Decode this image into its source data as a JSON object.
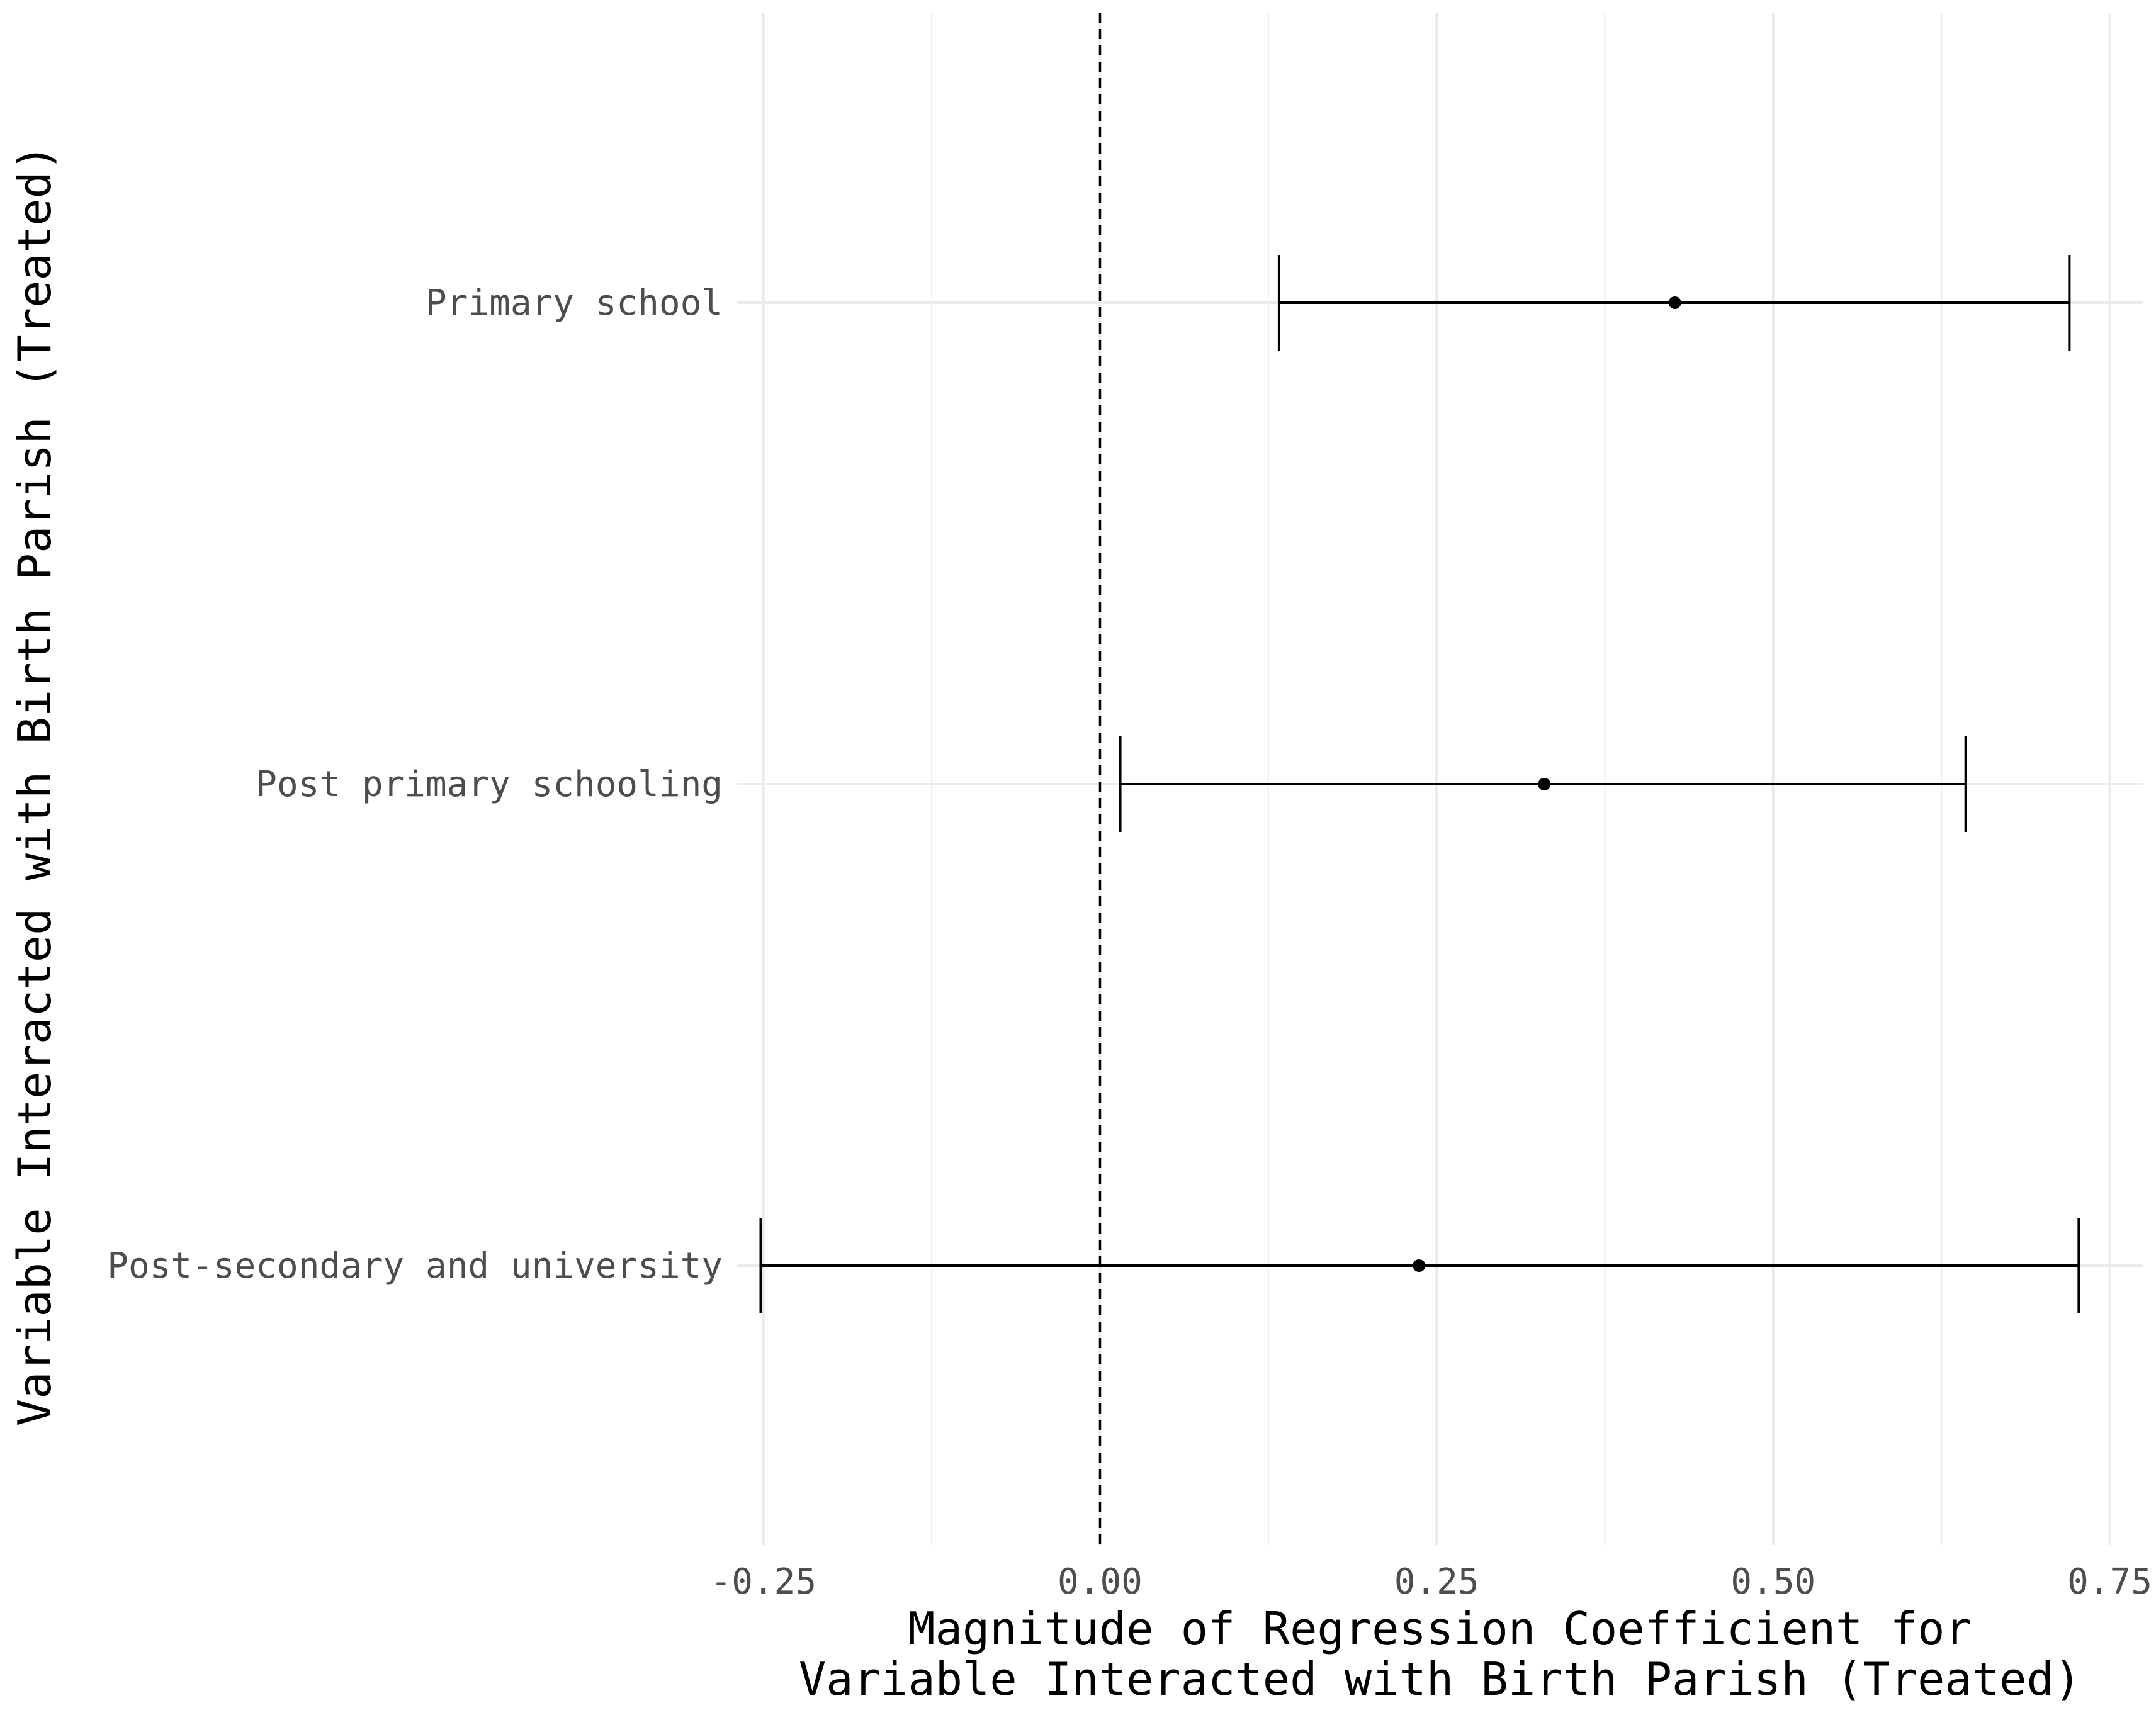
{
  "chart_data": {
    "type": "errorbar",
    "title": "",
    "xlabel_lines": [
      "Magnitude of Regression Coefficient for",
      "Variable Interacted with Birth Parish (Treated)"
    ],
    "ylabel": "Variable Interacted with Birth Parish (Treated)",
    "xlim": [
      -0.27,
      0.775
    ],
    "xticks": [
      -0.25,
      0.0,
      0.25,
      0.5,
      0.75
    ],
    "xtick_labels": [
      "-0.25",
      "0.00",
      "0.25",
      "0.50",
      "0.75"
    ],
    "reference_line": {
      "x": 0.0,
      "style": "dashed"
    },
    "categories": [
      "Primary school",
      "Post primary schooling",
      "Post-secondary and university"
    ],
    "estimates": [
      0.427,
      0.33,
      0.237
    ],
    "lower": [
      0.133,
      0.015,
      -0.252
    ],
    "upper": [
      0.72,
      0.643,
      0.727
    ],
    "grid": true,
    "legend": "none",
    "colors": {
      "grid": "#ebebeb",
      "mark": "#000000",
      "tick_text": "#4d4d4d"
    }
  }
}
